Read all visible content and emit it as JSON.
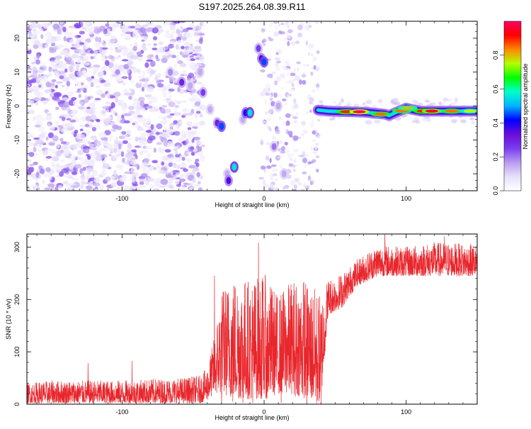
{
  "figure_title": "S197.2025.264.08.39.R11",
  "chart_data": [
    {
      "type": "heatmap",
      "panel": "spectrogram",
      "title": "S197.2025.264.08.39.R11",
      "xlabel": "Height of straight line (km)",
      "ylabel": "Frequency (Hz)",
      "xlim": [
        -167,
        150
      ],
      "ylim": [
        -25,
        25
      ],
      "xticks": [
        -100,
        0,
        100
      ],
      "xtick_labels": [
        "-100",
        "0",
        "100"
      ],
      "yticks": [
        -20,
        -10,
        0,
        10,
        20
      ],
      "ytick_labels": [
        "-20",
        "-10",
        "0",
        "10",
        "20"
      ],
      "colorbar": {
        "label": "Normalized spectral amplitude",
        "range": [
          0,
          1
        ],
        "ticks": [
          0.0,
          0.2,
          0.4,
          0.6,
          0.8
        ],
        "tick_labels": [
          "0.0",
          "0.2",
          "0.4",
          "0.6",
          "0.8"
        ],
        "stops": [
          "#ffffff",
          "#e8e0fa",
          "#b89cf0",
          "#7a3cf0",
          "#6a0dd8",
          "#0000ff",
          "#00b4ff",
          "#00ffcc",
          "#00ff00",
          "#b4ff00",
          "#ff8800",
          "#ff0000",
          "#ff0060"
        ]
      },
      "background_noise_x_range": [
        -167,
        -43
      ],
      "quiet_gap_x_range": [
        -40,
        -2
      ],
      "features": [
        {
          "name": "blob",
          "x": -66,
          "y": 10,
          "amplitude": 0.18
        },
        {
          "name": "blob",
          "x": -58,
          "y": 7,
          "amplitude": 0.3
        },
        {
          "name": "blob",
          "x": -52,
          "y": 6,
          "amplitude": 0.15
        },
        {
          "name": "blob",
          "x": -45,
          "y": 10,
          "amplitude": 0.15
        },
        {
          "name": "blob",
          "x": -43,
          "y": 4,
          "amplitude": 0.25
        },
        {
          "name": "blob",
          "x": -38,
          "y": -1,
          "amplitude": 0.15
        },
        {
          "name": "blob",
          "x": -33,
          "y": -5,
          "amplitude": 0.3
        },
        {
          "name": "blob",
          "x": -30,
          "y": -6,
          "amplitude": 0.45
        },
        {
          "name": "blob",
          "x": -26,
          "y": -20,
          "amplitude": 0.15
        },
        {
          "name": "blob",
          "x": -25,
          "y": -22,
          "amplitude": 0.35
        },
        {
          "name": "blob",
          "x": -21,
          "y": -18,
          "amplitude": 0.55
        },
        {
          "name": "blob",
          "x": -15,
          "y": -4,
          "amplitude": 0.15
        },
        {
          "name": "blob",
          "x": -13,
          "y": -2,
          "amplitude": 0.4
        },
        {
          "name": "blob",
          "x": -10,
          "y": -2,
          "amplitude": 0.55
        },
        {
          "name": "blob",
          "x": -4,
          "y": 17,
          "amplitude": 0.25
        },
        {
          "name": "blob",
          "x": -2,
          "y": 14,
          "amplitude": 0.35
        },
        {
          "name": "blob",
          "x": 0,
          "y": 13,
          "amplitude": 0.45
        },
        {
          "name": "blob",
          "x": 7,
          "y": -12,
          "amplitude": 0.2
        },
        {
          "name": "blob",
          "x": 10,
          "y": 0,
          "amplitude": 0.15
        },
        {
          "name": "blob",
          "x": 14,
          "y": -20,
          "amplitude": 0.15
        }
      ],
      "tone": {
        "x_start": 38,
        "x_end": 150,
        "points": [
          {
            "x": 38,
            "y": -1.2
          },
          {
            "x": 45,
            "y": -1.5
          },
          {
            "x": 60,
            "y": -1.7
          },
          {
            "x": 70,
            "y": -1.8
          },
          {
            "x": 80,
            "y": -2.2
          },
          {
            "x": 85,
            "y": -2.4
          },
          {
            "x": 88,
            "y": -2.8
          },
          {
            "x": 92,
            "y": -2.0
          },
          {
            "x": 95,
            "y": -1.5
          },
          {
            "x": 100,
            "y": -0.6
          },
          {
            "x": 104,
            "y": -1.0
          },
          {
            "x": 110,
            "y": -1.5
          },
          {
            "x": 125,
            "y": -1.5
          },
          {
            "x": 140,
            "y": -1.5
          },
          {
            "x": 150,
            "y": -1.5
          }
        ],
        "peaks": [
          {
            "x": 58,
            "y": -1.7,
            "amplitude": 0.9
          },
          {
            "x": 67,
            "y": -1.7,
            "amplitude": 1.0
          },
          {
            "x": 82,
            "y": -2.4,
            "amplitude": 0.85
          },
          {
            "x": 97,
            "y": -1.4,
            "amplitude": 0.85
          },
          {
            "x": 101,
            "y": -0.6,
            "amplitude": 0.8
          },
          {
            "x": 112,
            "y": -1.5,
            "amplitude": 0.9
          },
          {
            "x": 118,
            "y": -1.5,
            "amplitude": 0.95
          },
          {
            "x": 132,
            "y": -1.5,
            "amplitude": 0.85
          },
          {
            "x": 145,
            "y": -1.5,
            "amplitude": 0.75
          }
        ]
      }
    },
    {
      "type": "line",
      "panel": "snr",
      "xlabel": "Height of straight line (km)",
      "ylabel": "SNR (10 * v/v)",
      "xlim": [
        -167,
        150
      ],
      "ylim": [
        0,
        325
      ],
      "xticks": [
        -100,
        0,
        100
      ],
      "xtick_labels": [
        "-100",
        "0",
        "100"
      ],
      "yticks": [
        0,
        100,
        200,
        300
      ],
      "ytick_labels": [
        "0",
        "100",
        "200",
        "300"
      ],
      "color": "#e8262c",
      "series": [
        {
          "name": "SNR",
          "envelope": [
            {
              "x": -167,
              "lo": 2,
              "hi": 40
            },
            {
              "x": -150,
              "lo": 2,
              "hi": 45
            },
            {
              "x": -130,
              "lo": 2,
              "hi": 45
            },
            {
              "x": -100,
              "lo": 2,
              "hi": 45
            },
            {
              "x": -80,
              "lo": 2,
              "hi": 48
            },
            {
              "x": -60,
              "lo": 2,
              "hi": 50
            },
            {
              "x": -45,
              "lo": 2,
              "hi": 55
            },
            {
              "x": -40,
              "lo": 8,
              "hi": 70
            },
            {
              "x": -35,
              "lo": 20,
              "hi": 130
            },
            {
              "x": -30,
              "lo": 20,
              "hi": 220
            },
            {
              "x": -20,
              "lo": 10,
              "hi": 250
            },
            {
              "x": -10,
              "lo": 10,
              "hi": 240
            },
            {
              "x": 0,
              "lo": 10,
              "hi": 250
            },
            {
              "x": 10,
              "lo": 20,
              "hi": 210
            },
            {
              "x": 20,
              "lo": 20,
              "hi": 240
            },
            {
              "x": 30,
              "lo": 10,
              "hi": 240
            },
            {
              "x": 40,
              "lo": 2,
              "hi": 210
            },
            {
              "x": 45,
              "lo": 170,
              "hi": 240
            },
            {
              "x": 55,
              "lo": 185,
              "hi": 250
            },
            {
              "x": 65,
              "lo": 225,
              "hi": 275
            },
            {
              "x": 80,
              "lo": 245,
              "hi": 305
            },
            {
              "x": 100,
              "lo": 245,
              "hi": 300
            },
            {
              "x": 120,
              "lo": 245,
              "hi": 310
            },
            {
              "x": 150,
              "lo": 245,
              "hi": 305
            }
          ],
          "spikes": [
            {
              "x": -124,
              "y": 78
            },
            {
              "x": -93,
              "y": 82
            },
            {
              "x": -35,
              "y": 245
            },
            {
              "x": -4,
              "y": 308
            },
            {
              "x": 28,
              "y": 233
            },
            {
              "x": 85,
              "y": 328
            },
            {
              "x": 127,
              "y": 320
            }
          ],
          "dropouts": [
            {
              "x": -30,
              "y": 2
            },
            {
              "x": -22,
              "y": 5
            },
            {
              "x": -15,
              "y": 3
            },
            {
              "x": -8,
              "y": 3
            },
            {
              "x": 2,
              "y": 10
            },
            {
              "x": 12,
              "y": 3
            },
            {
              "x": 22,
              "y": 15
            },
            {
              "x": 30,
              "y": 3
            },
            {
              "x": 37,
              "y": 2
            },
            {
              "x": 40,
              "y": 1
            }
          ]
        }
      ]
    }
  ]
}
